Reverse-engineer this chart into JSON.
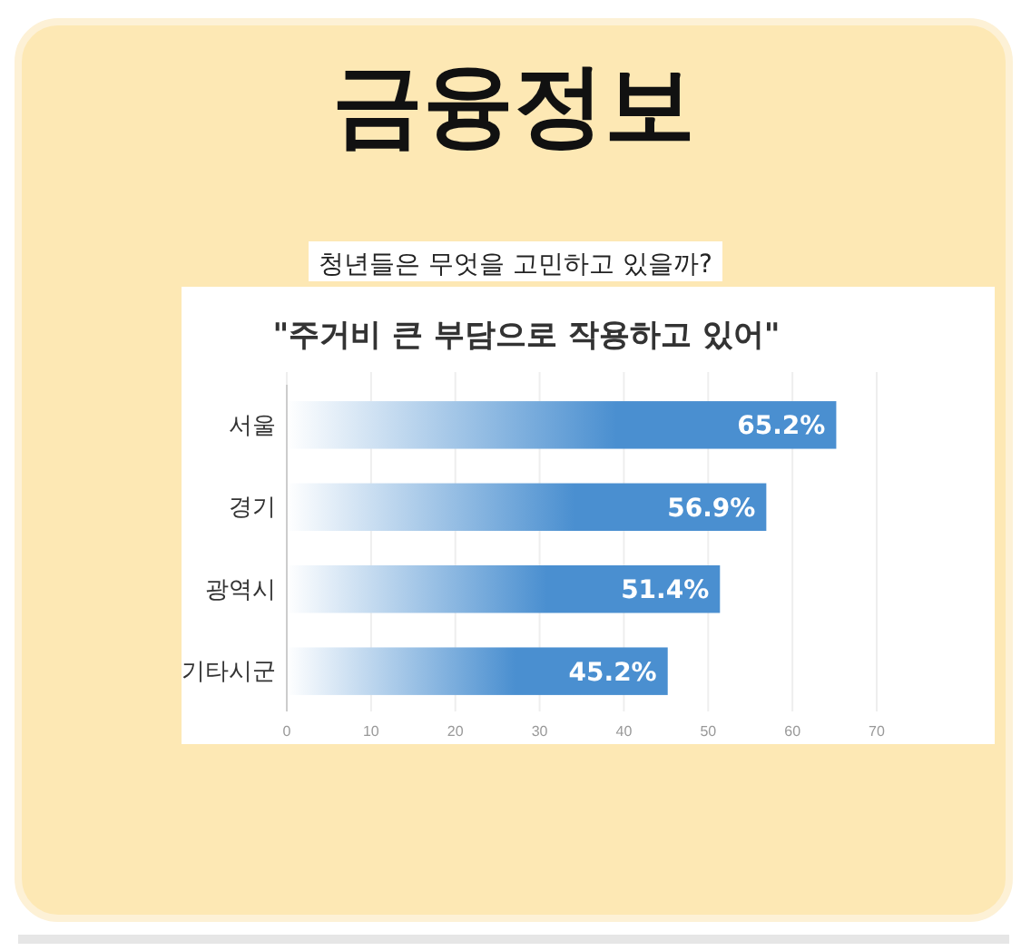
{
  "chart_data": {
    "type": "bar",
    "orientation": "horizontal",
    "title": "금융정보",
    "subtitle": "청년들은 무엇을 고민하고 있을까?",
    "annotations": [
      "\"주거비 큰 부담으로 작용하고 있어\""
    ],
    "categories": [
      "서울",
      "경기",
      "광역시",
      "기타시군"
    ],
    "values": [
      65.2,
      56.9,
      51.4,
      45.2
    ],
    "value_labels": [
      "65.2%",
      "56.9%",
      "51.4%",
      "45.2%"
    ],
    "color": "#4a8fd0",
    "xlim": [
      0,
      70
    ],
    "xticks": [
      0,
      10,
      20,
      30,
      40,
      50,
      60,
      70
    ],
    "grid": "x"
  }
}
